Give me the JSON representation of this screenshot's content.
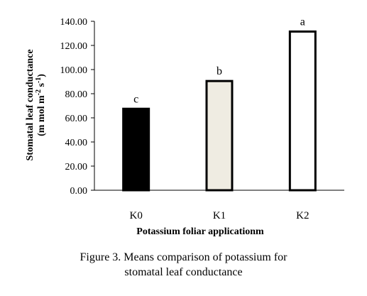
{
  "chart_data": {
    "type": "bar",
    "categories": [
      "K0",
      "K1",
      "K2"
    ],
    "values": [
      67.5,
      90.5,
      131.5
    ],
    "significance_letters": [
      "c",
      "b",
      "a"
    ],
    "bar_colors": [
      "#000000",
      "#efece2",
      "#ffffff"
    ],
    "ylim": [
      0,
      140
    ],
    "yticks": [
      0,
      20,
      40,
      60,
      80,
      100,
      120,
      140
    ],
    "ytick_labels": [
      "0.00",
      "20.00",
      "40.00",
      "60.00",
      "80.00",
      "100.00",
      "120.00",
      "140.00"
    ],
    "xlabel": "Potassium foliar applicationm",
    "ylabel_line1": "Stomatal leaf conductance",
    "ylabel_line2_parts": [
      "(m mol m",
      "-2",
      " s",
      "-1",
      ")"
    ],
    "grid": false,
    "legend": false
  },
  "caption": {
    "line1": "Figure 3. Means comparison of potassium for",
    "line2": "stomatal leaf conductance"
  }
}
